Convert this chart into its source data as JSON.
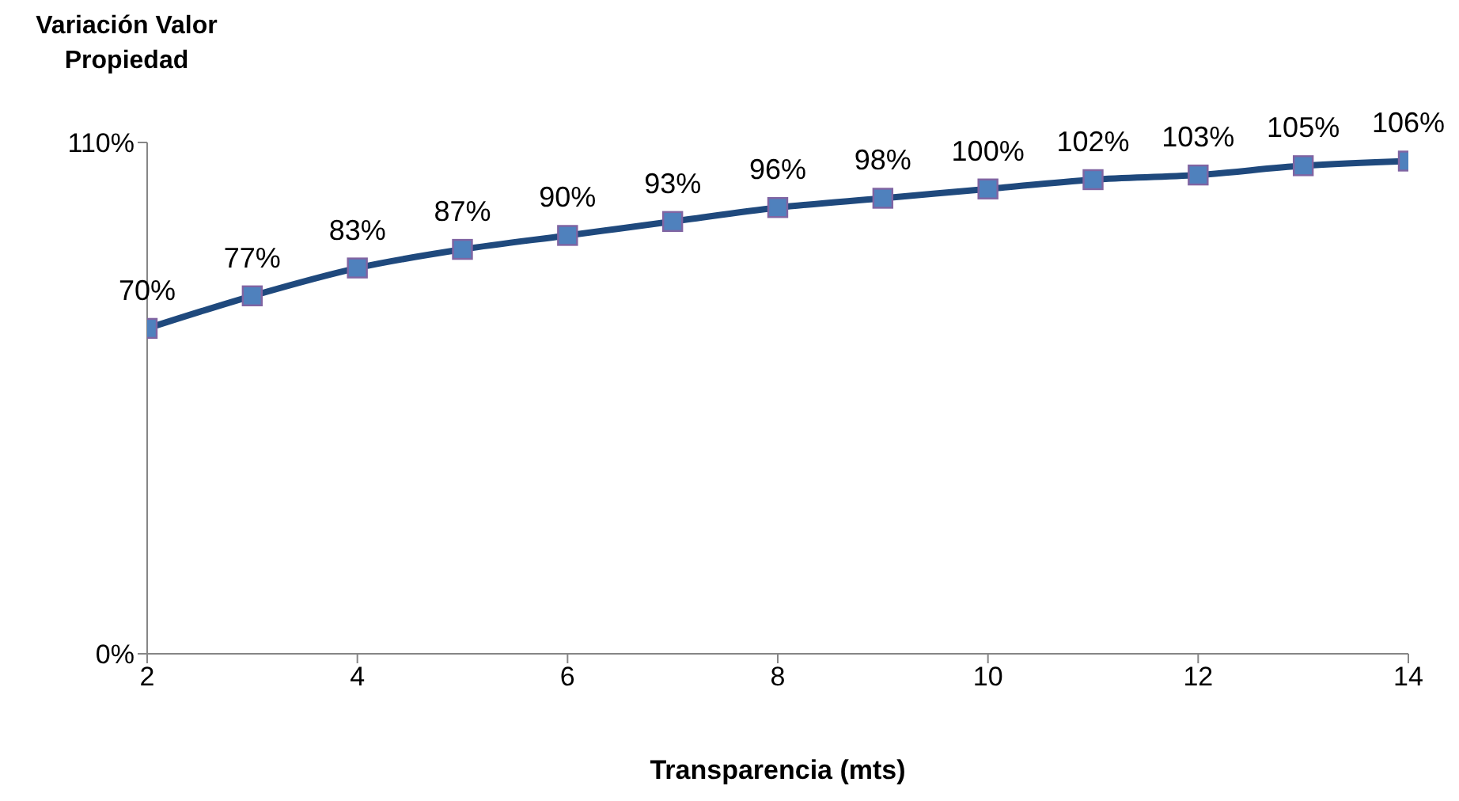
{
  "chart_data": {
    "type": "line",
    "title": "Variación Valor Propiedad",
    "xlabel": "Transparencia (mts)",
    "x": [
      2,
      3,
      4,
      5,
      6,
      7,
      8,
      9,
      10,
      11,
      12,
      13,
      14
    ],
    "series": [
      {
        "color": "#1f497d",
        "values": [
          70,
          77,
          83,
          87,
          90,
          93,
          96,
          98,
          100,
          102,
          103,
          105,
          106
        ],
        "value_labels": [
          "70%",
          "77%",
          "83%",
          "87%",
          "90%",
          "93%",
          "96%",
          "98%",
          "100%",
          "102%",
          "103%",
          "105%",
          "106%"
        ]
      }
    ],
    "xlim": [
      2,
      14
    ],
    "xticks": [
      2,
      4,
      6,
      8,
      10,
      12,
      14
    ],
    "ylim": [
      0,
      110
    ],
    "yticks": [
      {
        "value": 0,
        "label": "0%"
      },
      {
        "value": 110,
        "label": "110%"
      }
    ],
    "grid": false,
    "marker": "square",
    "line_style": "solid"
  }
}
